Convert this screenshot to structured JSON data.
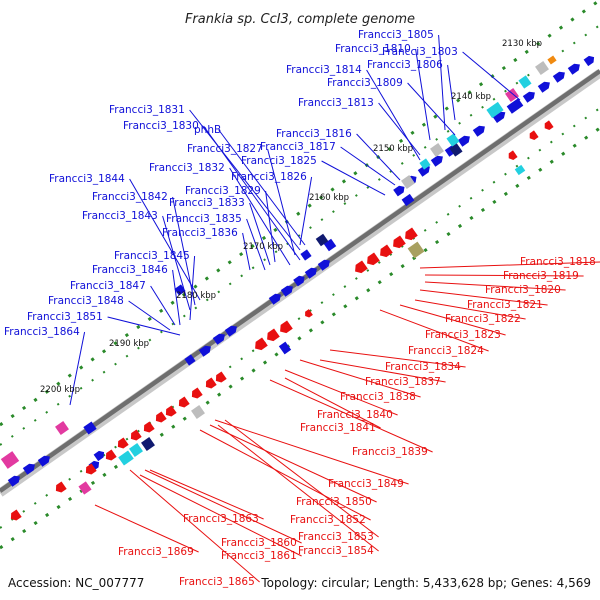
{
  "title": "Frankia sp. CcI3, complete genome",
  "footer": {
    "accession": "Accession: NC_007777",
    "topology": "Topology: circular; Length: 5,433,628 bp; Genes: 4,569"
  },
  "colors": {
    "forward": "#1010d8",
    "reverse": "#e81010",
    "backbone": "#888888",
    "tick": "#2a8a2a",
    "cyan": "#22d0e0",
    "pink": "#e23aa0",
    "gray": "#bdbdbd",
    "navy": "#101a70",
    "olive": "#a8a060",
    "orange": "#f08a10"
  },
  "position_labels": [
    "2130 kbp",
    "2140 kbp",
    "2150 kbp",
    "2160 kbp",
    "2170 kbp",
    "2180 kbp",
    "2190 kbp",
    "2200 kbp"
  ],
  "forward_genes": [
    "Francci3_1805",
    "Francci3_1810",
    "Francci3_1803",
    "Francci3_1806",
    "Francci3_1814",
    "Francci3_1809",
    "Francci3_1813",
    "Francci3_1831",
    "Francci3_1830",
    "phhB",
    "Francci3_1816",
    "Francci3_1827",
    "Francci3_1817",
    "Francci3_1832",
    "Francci3_1825",
    "Francci3_1844",
    "Francci3_1826",
    "Francci3_1829",
    "Francci3_1842",
    "Francci3_1833",
    "Francci3_1843",
    "Francci3_1835",
    "Francci3_1836",
    "Francci3_1845",
    "Francci3_1846",
    "Francci3_1847",
    "Francci3_1848",
    "Francci3_1851",
    "Francci3_1864"
  ],
  "reverse_genes": [
    "Francci3_1818",
    "Francci3_1819",
    "Francci3_1820",
    "Francci3_1821",
    "Francci3_1822",
    "Francci3_1823",
    "Francci3_1824",
    "Francci3_1834",
    "Francci3_1837",
    "Francci3_1838",
    "Francci3_1840",
    "Francci3_1841",
    "Francci3_1839",
    "Francci3_1849",
    "Francci3_1850",
    "Francci3_1852",
    "Francci3_1853",
    "Francci3_1854",
    "Francci3_1863",
    "Francci3_1860",
    "Francci3_1861",
    "Francci3_1869",
    "Francci3_1865"
  ]
}
